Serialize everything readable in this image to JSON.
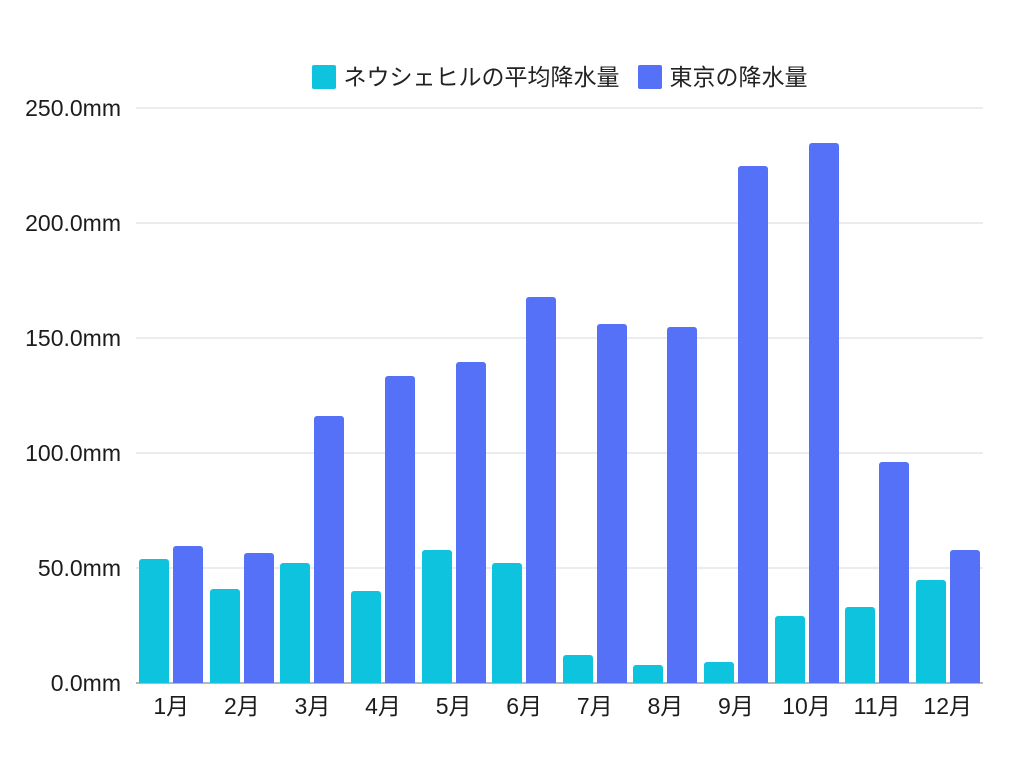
{
  "chart_data": {
    "type": "bar",
    "title": "",
    "xlabel": "",
    "ylabel": "",
    "unit": "mm",
    "categories": [
      "1月",
      "2月",
      "3月",
      "4月",
      "5月",
      "6月",
      "7月",
      "8月",
      "9月",
      "10月",
      "11月",
      "12月"
    ],
    "series": [
      {
        "name": "ネウシェヒルの平均降水量",
        "color": "#0EC3DE",
        "values": [
          54,
          41,
          52,
          40,
          58,
          52,
          12,
          8,
          9,
          29,
          33,
          45
        ]
      },
      {
        "name": "東京の降水量",
        "color": "#5571F7",
        "values": [
          59.7,
          56.5,
          116.0,
          133.7,
          139.7,
          167.8,
          156.2,
          154.7,
          224.9,
          234.8,
          96.3,
          57.9
        ]
      }
    ],
    "ylim": [
      0,
      250
    ],
    "ytick_step": 50,
    "ytick_labels": [
      "0.0mm",
      "50.0mm",
      "100.0mm",
      "150.0mm",
      "200.0mm",
      "250.0mm"
    ],
    "grid": true,
    "legend_position": "top-center"
  },
  "colors": {
    "background": "#ffffff",
    "gridline": "#ececec",
    "axis_line": "#b7b7b7",
    "text": "#1c1c1c"
  }
}
